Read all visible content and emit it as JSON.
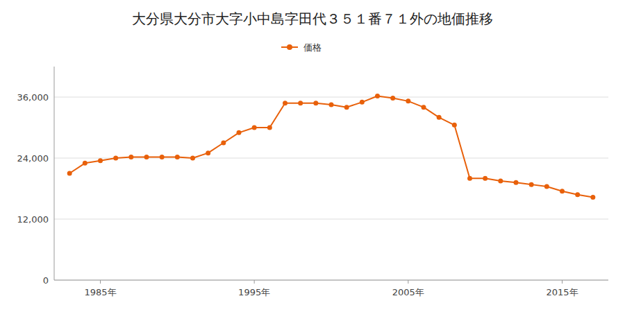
{
  "chart_data": {
    "type": "line",
    "title": "大分県大分市大字小中島字田代３５１番７１外の地価推移",
    "x": [
      1983,
      1984,
      1985,
      1986,
      1987,
      1988,
      1989,
      1990,
      1991,
      1992,
      1993,
      1994,
      1995,
      1996,
      1997,
      1998,
      1999,
      2000,
      2001,
      2002,
      2003,
      2004,
      2005,
      2006,
      2007,
      2008,
      2009,
      2010,
      2011,
      2012,
      2013,
      2014,
      2015,
      2016,
      2017
    ],
    "series": [
      {
        "name": "価格",
        "color": "#e8600a",
        "marker": "circle",
        "values": [
          21000,
          23000,
          23500,
          24000,
          24200,
          24200,
          24200,
          24200,
          24000,
          25000,
          27000,
          29000,
          30000,
          30000,
          34800,
          34800,
          34800,
          34500,
          34000,
          35000,
          36200,
          35800,
          35200,
          34000,
          32000,
          30500,
          20000,
          20000,
          19500,
          19200,
          18800,
          18400,
          17500,
          16800,
          16300
        ]
      }
    ],
    "xlim": [
      1982,
      2018
    ],
    "ylim": [
      0,
      42000
    ],
    "xticks": [
      {
        "value": 1985,
        "label": "1985年"
      },
      {
        "value": 1995,
        "label": "1995年"
      },
      {
        "value": 2005,
        "label": "2005年"
      },
      {
        "value": 2015,
        "label": "2015年"
      }
    ],
    "yticks": [
      0,
      {
        "value": 12000,
        "label": "12,000"
      },
      {
        "value": 24000,
        "label": "24,000"
      },
      {
        "value": 36000,
        "label": "36,000"
      }
    ],
    "grid": true,
    "legend": "top"
  }
}
